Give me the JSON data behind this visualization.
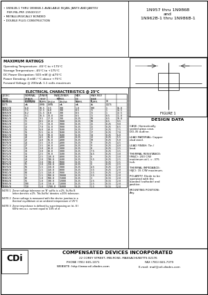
{
  "title_right": "1N957 thru 1N986B\nand\n1N962B-1 thru 1N986B-1",
  "bullet1": "  1N962B-1 THRU 1N986B-1 AVAILABLE IN JAN, JANTX AND JANTXV",
  "bullet2": "  PER MIL-PRF-19500/117",
  "bullet3": "  METALLURGICALLY BONDED",
  "bullet4": "  DOUBLE PLUG CONSTRUCTION",
  "max_ratings_title": "MAXIMUM RATINGS",
  "max_ratings": [
    "Operating Temperature: -65°C to +175°C",
    "Storage Temperature: -65°C to +175°C",
    "DC Power Dissipation: 500 mW @ ≤75°C",
    "Power Derating: 4 mW / °C above +75°C",
    "Forward Voltage @ 200mA: 1.1 volts maximum"
  ],
  "elec_char_title": "ELECTRICAL CHARACTERISTICS @ 25°C",
  "col_headers_row1": [
    "JEDEC",
    "NOMINAL",
    "ZENER",
    "MAXIMUM ZENER",
    "",
    "MAX DC",
    "MAX REVERSE"
  ],
  "col_headers_row2": [
    "TYPE",
    "ZENER",
    "TEST",
    "IMPEDANCE",
    "",
    "ZENER",
    "LEAKAGE CURRENT"
  ],
  "col_headers_row3": [
    "NUMBER",
    "VOLTAGE",
    "CURRENT",
    "",
    "",
    "CURRENT",
    ""
  ],
  "col_sub1": [
    "(NOTE 1)",
    "Vz (NOTE 2)",
    "Izt",
    "Zzt @ Izt",
    "Zzk @ Izk",
    "Izm",
    "IR @ VR"
  ],
  "col_units": [
    "VOLTS",
    "mA",
    "OHMS",
    "OHMS",
    "mA",
    "mA",
    "uA",
    "VOLTS"
  ],
  "table_data": [
    [
      "1N957/B",
      "6.8",
      "18.5",
      "3.5",
      "700",
      "1.0",
      "100",
      "1",
      "15.0"
    ],
    [
      "1N958/B",
      "7.5",
      "12.5",
      "6.0",
      "700",
      "0.5",
      "75",
      "1",
      "13.5"
    ],
    [
      "1N959/B",
      "8.2",
      "11.5",
      "8.0",
      "700",
      "0.5",
      "75",
      "1",
      "12.5"
    ],
    [
      "1N960/B",
      "9.1",
      "10.5",
      "10.0",
      "700",
      "0.5",
      "75",
      "0.5",
      "11.0"
    ],
    [
      "1N961/B",
      "10",
      "9.5",
      "17.0",
      "700",
      "0.25",
      "50",
      "0.5",
      "10.0"
    ],
    [
      "1N962/B",
      "11",
      "8.5",
      "22.0",
      "1000",
      "0.25",
      "50",
      "0.5",
      "9.5"
    ],
    [
      "1N963/B",
      "12",
      "7.5",
      "30.0",
      "1000",
      "0.25",
      "25",
      "0.25",
      "9.0"
    ],
    [
      "1N964/B",
      "13",
      "7.0",
      "35.0",
      "1000",
      "0.25",
      "25",
      "0.25",
      "8.5"
    ],
    [
      "1N965/B",
      "15",
      "6.0",
      "40.0",
      "1500",
      "0.25",
      "17",
      "0.25",
      "7.5"
    ],
    [
      "1N966/B",
      "16",
      "5.5",
      "45.0",
      "1500",
      "0.25",
      "17",
      "0.25",
      "7.0"
    ],
    [
      "1N967/B",
      "18",
      "5.0",
      "50.0",
      "1500",
      "0.25",
      "14",
      "0.25",
      "6.0"
    ],
    [
      "1N968/B",
      "20",
      "4.5",
      "55.0",
      "2000",
      "0.25",
      "12",
      "0.25",
      "5.5"
    ],
    [
      "1N969/B",
      "22",
      "4.0",
      "55.0",
      "2000",
      "0.25",
      "10",
      "0.25",
      "5.0"
    ],
    [
      "1N970/B",
      "24",
      "3.5",
      "70.0",
      "2000",
      "0.25",
      "9",
      "0.25",
      "4.5"
    ],
    [
      "1N971/B",
      "27",
      "3.5",
      "80.0",
      "2000",
      "0.25",
      "9",
      "0.25",
      "4.0"
    ],
    [
      "1N972/B",
      "30",
      "3.0",
      "80.0",
      "3000",
      "0.25",
      "8",
      "0.25",
      "3.5"
    ],
    [
      "1N973/B",
      "33",
      "3.0",
      "80.0",
      "3000",
      "0.25",
      "7.5",
      "0.25",
      "3.5"
    ],
    [
      "1N974/B",
      "36",
      "2.5",
      "90.0",
      "3500",
      "0.25",
      "6.5",
      "0.25",
      "3.0"
    ],
    [
      "1N975/B",
      "39",
      "2.5",
      "130.0",
      "4000",
      "0.25",
      "6",
      "0.25",
      "3.0"
    ],
    [
      "1N976/B",
      "43",
      "2.0",
      "190.0",
      "4500",
      "0.25",
      "5.5",
      "0.25",
      "2.5"
    ],
    [
      "1N977/B",
      "47",
      "2.0",
      "190.0",
      "5000",
      "0.25",
      "5",
      "0.25",
      "2.5"
    ],
    [
      "1N978/B",
      "51",
      "2.0",
      "250.0",
      "6000",
      "0.25",
      "5",
      "0.25",
      "2.5"
    ],
    [
      "1N979/B",
      "56",
      "1.5",
      "250.0",
      "7000",
      "0.25",
      "4.5",
      "0.25",
      "2.0"
    ],
    [
      "1N980/B",
      "62",
      "1.5",
      "350.0",
      "8000",
      "0.25",
      "3.5",
      "0.25",
      "2.0"
    ],
    [
      "1N981/B",
      "68",
      "1.5",
      "350.0",
      "9000",
      "0.25",
      "3.5",
      "0.25",
      "2.0"
    ],
    [
      "1N982/B",
      "75",
      "1.5",
      "500.0",
      "10000",
      "0.25",
      "3.5",
      "0.25",
      "2.0"
    ],
    [
      "1N983/B",
      "82",
      "1.0",
      "500.0",
      "11000",
      "0.25",
      "3",
      "0.15",
      "2.0"
    ],
    [
      "1N984/B",
      "91",
      "1.0",
      "700.0",
      "12000",
      "0.25",
      "2.5",
      "0.15",
      "2.0"
    ],
    [
      "1N985/B",
      "100",
      "1.0",
      "750.0",
      "13000",
      "0.25",
      "2.5",
      "0.15",
      "2.0"
    ],
    [
      "1N986/B",
      "110",
      "1.0",
      "1700.0",
      "15000",
      "0.25",
      "1.5",
      "0.15",
      "2.0"
    ]
  ],
  "note1": "NOTE 1   Zener voltage tolerance on 'B' suffix is ±2%, Suffix letter B denotes ±2%. 'No-Suffix' denotes ±20% tolerance. 'C' suffix denotes ±5% and 'D' suffix denotes ±1%.",
  "note2": "NOTE 2   Zener voltage is measured with the device junction in thermal equilibrium at an ambient temperature of 25°C ± 5°C.",
  "note3": "NOTE 3   Zener impedance is defined by superimposing on Izt, 8 60Hz rms a.c. current equal to 10% of I zt",
  "figure1": "FIGURE 1",
  "design_data_title": "DESIGN DATA",
  "dd1": "CASE: Hermetically sealed glass case, DO-35 outline.",
  "dd2": "LEAD MATERIAL: Copper clad steel.",
  "dd3": "LEAD FINISH: Tin / Lead.",
  "dd4": "THERMAL RESISTANCE: (RθJC): 200  C/W maximum at L = .375 inch.",
  "dd5": "THERMAL IMPEDANCE: (θJC): 15 C/W maximum.",
  "dd6": "POLARITY: Diode to be operated with the banded (cathode) and positive.",
  "dd7": "MOUNTING POSITION: Any.",
  "company_name": "COMPENSATED DEVICES INCORPORATED",
  "company_address": "22 COREY STREET, MELROSE, MASSACHUSETTS 02176",
  "company_phone": "PHONE (781) 665-1071",
  "company_fax": "FAX (781) 665-7379",
  "company_website": "WEBSITE: http://www.cdi-diodes.com",
  "company_email": "E-mail: mail@cdi-diodes.com",
  "bg_color": "#ffffff"
}
